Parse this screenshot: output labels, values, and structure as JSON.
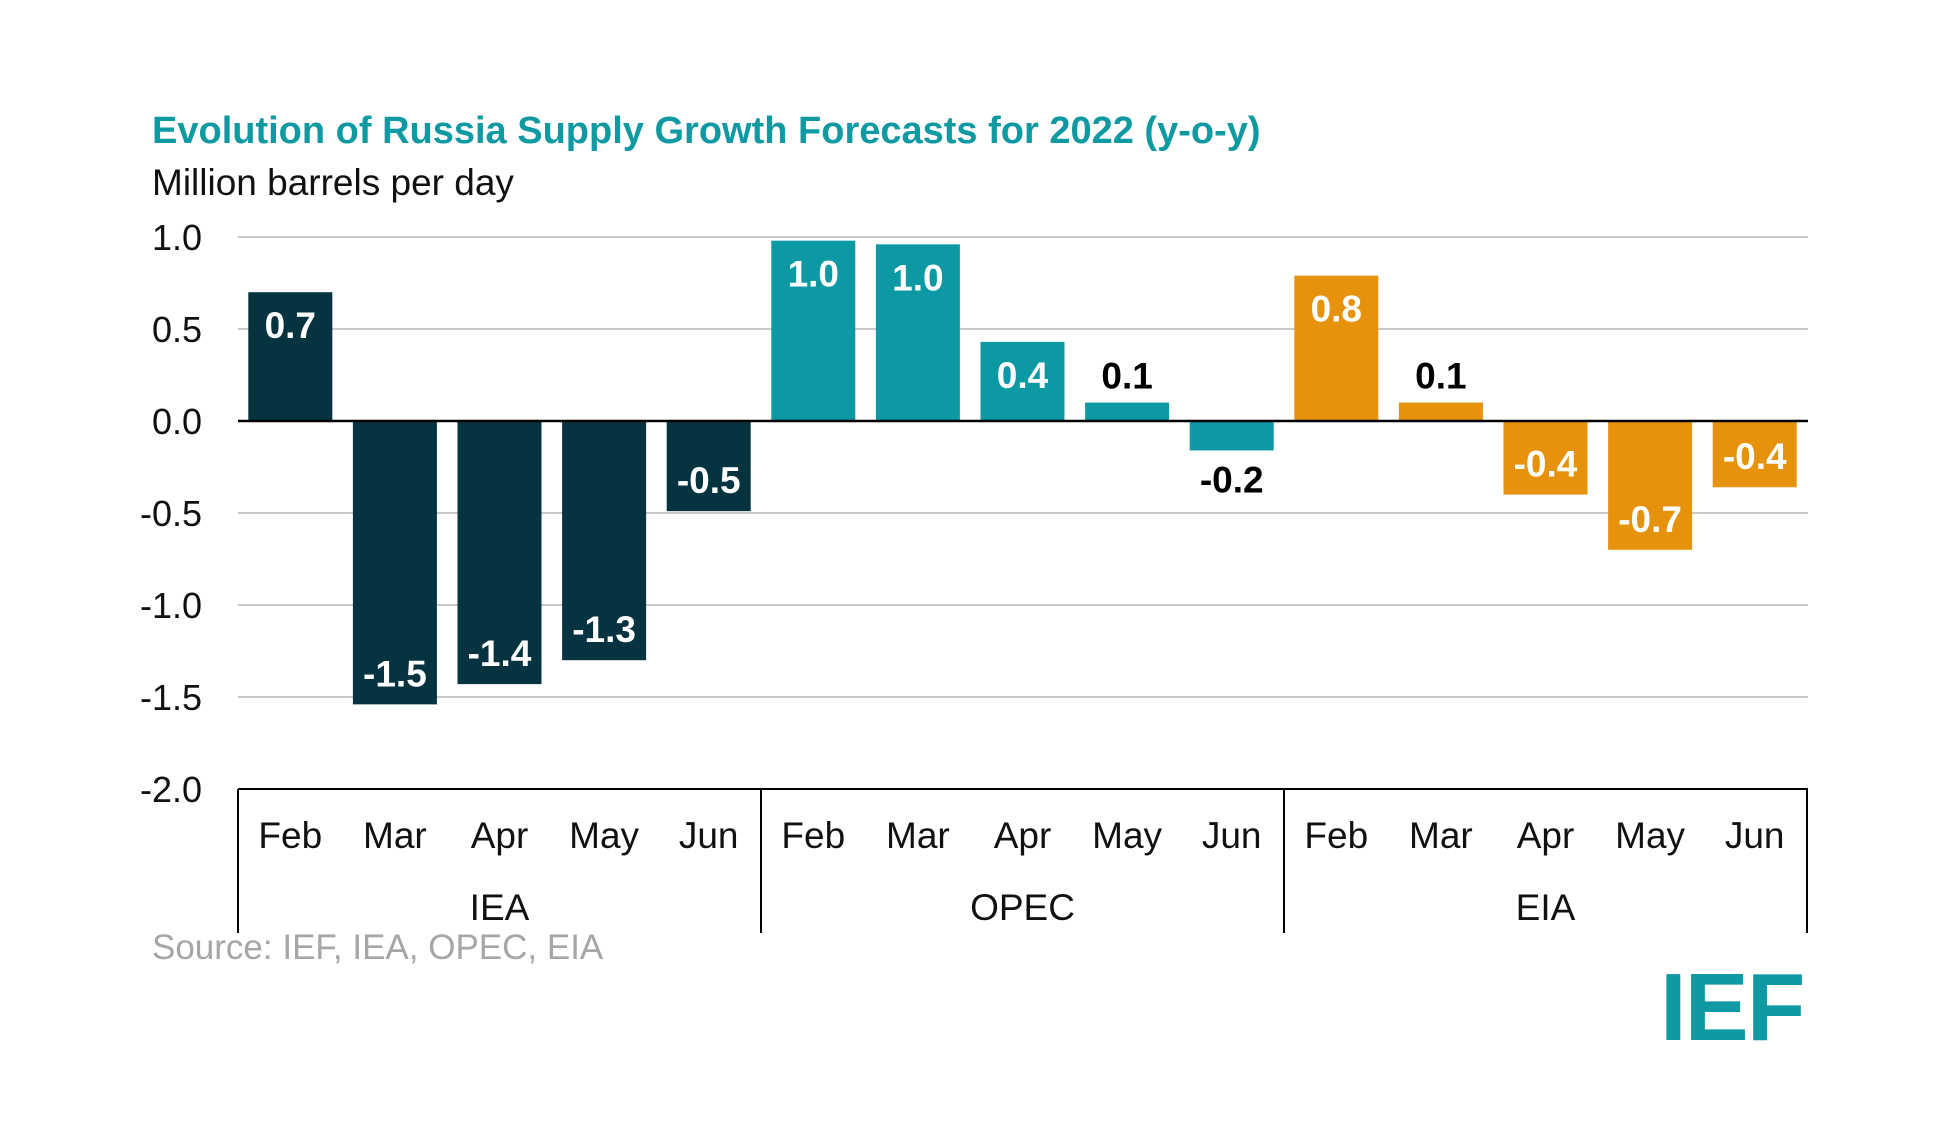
{
  "chart_data": {
    "type": "bar",
    "title": "Evolution of Russia Supply Growth Forecasts for 2022 (y-o-y)",
    "subtitle": "Million barrels per day",
    "ylabel": "Million barrels per day",
    "xlabel": "",
    "ylim": [
      -2.0,
      1.0
    ],
    "yticks": [
      "1.0",
      "0.5",
      "0.0",
      "-0.5",
      "-1.0",
      "-1.5",
      "-2.0"
    ],
    "ytick_values": [
      1.0,
      0.5,
      0.0,
      -0.5,
      -1.0,
      -1.5,
      -2.0
    ],
    "grid": true,
    "groups": [
      {
        "name": "IEA",
        "color": "#05333f",
        "categories": [
          "Feb",
          "Mar",
          "Apr",
          "May",
          "Jun"
        ],
        "values": [
          0.7,
          -1.54,
          -1.43,
          -1.3,
          -0.49
        ],
        "labels": [
          "0.7",
          "-1.5",
          "-1.4",
          "-1.3",
          "-0.5"
        ]
      },
      {
        "name": "OPEC",
        "color": "#0c99a4",
        "categories": [
          "Feb",
          "Mar",
          "Apr",
          "May",
          "Jun"
        ],
        "values": [
          0.98,
          0.96,
          0.43,
          0.1,
          -0.16
        ],
        "labels": [
          "1.0",
          "1.0",
          "0.4",
          "0.1",
          "-0.2"
        ]
      },
      {
        "name": "EIA",
        "color": "#e6920c",
        "categories": [
          "Feb",
          "Mar",
          "Apr",
          "May",
          "Jun"
        ],
        "values": [
          0.79,
          0.1,
          -0.4,
          -0.7,
          -0.36
        ],
        "labels": [
          "0.8",
          "0.1",
          "-0.4",
          "-0.7",
          "-0.4"
        ]
      }
    ]
  },
  "source": "Source: IEF, IEA, OPEC, EIA",
  "logo_text": "IEF",
  "colors": {
    "title": "#0f9aa3",
    "grid": "#c8c8c8",
    "axis": "#000000",
    "label_light": "#ffffff",
    "label_dark": "#000000",
    "logo": "#0f9aa3"
  }
}
